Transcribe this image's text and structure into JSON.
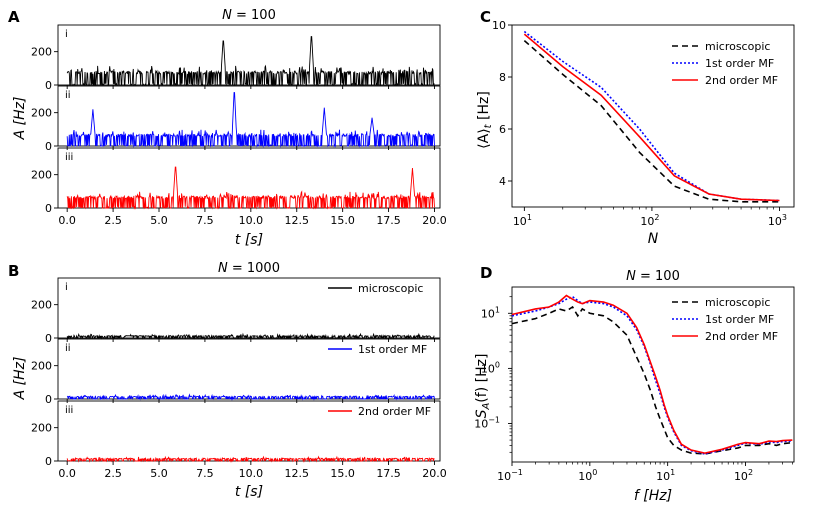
{
  "figure": {
    "panel_a_letter": "A",
    "panel_b_letter": "B",
    "panel_c_letter": "C",
    "panel_d_letter": "D"
  },
  "legend": {
    "microscopic": "microscopic",
    "first_order": "1st order MF",
    "second_order": "2nd order MF"
  },
  "colors": {
    "microscopic": "#000000",
    "first_order": "#0000ff",
    "second_order": "#ff0000"
  },
  "chart_data": [
    {
      "id": "A",
      "type": "line",
      "title": "N = 100",
      "title_prefix": "N",
      "title_suffix": " = 100",
      "xlabel": "t [s]",
      "ylabel": "A [Hz]",
      "xlim": [
        -0.5,
        20.3
      ],
      "ylim": [
        0,
        360
      ],
      "xticks": [
        0.0,
        2.5,
        5.0,
        7.5,
        10.0,
        12.5,
        15.0,
        17.5,
        20.0
      ],
      "xtick_labels": [
        "0.0",
        "2.5",
        "5.0",
        "7.5",
        "10.0",
        "12.5",
        "15.0",
        "17.5",
        "20.0"
      ],
      "yticks": [
        0,
        200
      ],
      "ytick_labels": [
        "0",
        "200"
      ],
      "subplots": [
        {
          "label": "i",
          "series": "microscopic",
          "baseline": 75,
          "jitter": 18,
          "peaks": [
            [
              8.5,
              290
            ],
            [
              13.3,
              320
            ]
          ]
        },
        {
          "label": "ii",
          "series": "1st order MF",
          "baseline": 65,
          "jitter": 15,
          "peaks": [
            [
              1.4,
              220
            ],
            [
              9.1,
              355
            ],
            [
              14.0,
              230
            ],
            [
              16.6,
              170
            ]
          ]
        },
        {
          "label": "iii",
          "series": "2nd order MF",
          "baseline": 65,
          "jitter": 15,
          "peaks": [
            [
              5.9,
              270
            ],
            [
              18.8,
              240
            ]
          ]
        }
      ]
    },
    {
      "id": "B",
      "type": "line",
      "title": "N = 1000",
      "title_prefix": "N",
      "title_suffix": " = 1000",
      "xlabel": "t [s]",
      "ylabel": "A [Hz]",
      "xlim": [
        -0.5,
        20.3
      ],
      "ylim": [
        0,
        360
      ],
      "xticks": [
        0.0,
        2.5,
        5.0,
        7.5,
        10.0,
        12.5,
        15.0,
        17.5,
        20.0
      ],
      "xtick_labels": [
        "0.0",
        "2.5",
        "5.0",
        "7.5",
        "10.0",
        "12.5",
        "15.0",
        "17.5",
        "20.0"
      ],
      "yticks": [
        0,
        200
      ],
      "ytick_labels": [
        "0",
        "200"
      ],
      "subplots": [
        {
          "label": "i",
          "series": "microscopic",
          "baseline": 12,
          "jitter": 5,
          "peaks": []
        },
        {
          "label": "ii",
          "series": "1st order MF",
          "baseline": 14,
          "jitter": 5,
          "peaks": []
        },
        {
          "label": "iii",
          "series": "2nd order MF",
          "baseline": 14,
          "jitter": 5,
          "peaks": []
        }
      ]
    },
    {
      "id": "C",
      "type": "line",
      "xscale": "log",
      "xlabel": "N",
      "ylabel": "⟨A⟩_t [Hz]",
      "ylabel_main": "⟨A⟩",
      "ylabel_sub": "t",
      "ylabel_unit": " [Hz]",
      "xlim": [
        8,
        1300
      ],
      "ylim": [
        3,
        10
      ],
      "xticks": [
        10,
        100,
        1000
      ],
      "xtick_base": "10",
      "xtick_exps": [
        "1",
        "2",
        "3"
      ],
      "yticks": [
        4,
        6,
        8,
        10
      ],
      "ytick_labels": [
        "4",
        "6",
        "8",
        "10"
      ],
      "series": [
        {
          "name": "microscopic",
          "style": "dashed",
          "x": [
            10,
            20,
            40,
            80,
            150,
            280,
            500,
            1000
          ],
          "y": [
            9.4,
            8.1,
            6.9,
            5.1,
            3.8,
            3.3,
            3.2,
            3.2
          ]
        },
        {
          "name": "1st order MF",
          "style": "dotted",
          "x": [
            10,
            20,
            40,
            80,
            150,
            280,
            500,
            1000
          ],
          "y": [
            9.75,
            8.6,
            7.6,
            6.0,
            4.3,
            3.5,
            3.3,
            3.25
          ]
        },
        {
          "name": "2nd order MF",
          "style": "solid",
          "x": [
            10,
            20,
            40,
            80,
            150,
            280,
            500,
            1000
          ],
          "y": [
            9.65,
            8.4,
            7.3,
            5.7,
            4.2,
            3.5,
            3.3,
            3.25
          ]
        }
      ]
    },
    {
      "id": "D",
      "type": "line",
      "xscale": "log",
      "yscale": "log",
      "title": "N = 100",
      "title_prefix": "N",
      "title_suffix": " = 100",
      "xlabel": "f [Hz]",
      "ylabel": "S_A(f) [Hz]",
      "ylabel_main": "S",
      "ylabel_sub": "A",
      "ylabel_unit": "(f) [Hz]",
      "xlim": [
        0.1,
        420
      ],
      "ylim": [
        0.02,
        30
      ],
      "xticks": [
        0.1,
        1,
        10,
        100
      ],
      "xtick_base": "10",
      "xtick_exps": [
        "−1",
        "0",
        "1",
        "2"
      ],
      "yticks": [
        0.1,
        1,
        10
      ],
      "ytick_base": "10",
      "ytick_exps": [
        "−1",
        "0",
        "1"
      ],
      "series": [
        {
          "name": "microscopic",
          "style": "dashed",
          "x": [
            0.1,
            0.2,
            0.3,
            0.4,
            0.5,
            0.6,
            0.7,
            0.8,
            1,
            1.5,
            2,
            3,
            4,
            5,
            6,
            7,
            8,
            9,
            10,
            12,
            15,
            20,
            30,
            50,
            80,
            100,
            150,
            200,
            250,
            300,
            400
          ],
          "y": [
            6.5,
            8,
            10,
            12,
            11,
            13,
            9,
            12,
            10,
            9,
            7,
            4,
            1.6,
            0.8,
            0.4,
            0.2,
            0.12,
            0.08,
            0.055,
            0.04,
            0.033,
            0.029,
            0.028,
            0.032,
            0.036,
            0.04,
            0.04,
            0.043,
            0.04,
            0.043,
            0.045
          ]
        },
        {
          "name": "1st order MF",
          "style": "dotted",
          "x": [
            0.1,
            0.2,
            0.3,
            0.4,
            0.5,
            0.6,
            0.7,
            0.8,
            1,
            1.5,
            2,
            3,
            4,
            5,
            6,
            7,
            8,
            9,
            10,
            12,
            15,
            20,
            30,
            50,
            80,
            100,
            150,
            200,
            250,
            300,
            400
          ],
          "y": [
            9,
            11,
            13,
            15,
            18,
            20,
            17,
            15,
            16,
            15,
            13,
            9,
            5,
            2.5,
            1.2,
            0.6,
            0.35,
            0.2,
            0.13,
            0.07,
            0.04,
            0.032,
            0.028,
            0.033,
            0.04,
            0.044,
            0.042,
            0.046,
            0.045,
            0.047,
            0.048
          ]
        },
        {
          "name": "2nd order MF",
          "style": "solid",
          "x": [
            0.1,
            0.2,
            0.3,
            0.4,
            0.5,
            0.6,
            0.7,
            0.8,
            1,
            1.5,
            2,
            3,
            4,
            5,
            6,
            7,
            8,
            9,
            10,
            12,
            15,
            20,
            30,
            50,
            80,
            100,
            150,
            200,
            250,
            300,
            400
          ],
          "y": [
            9.5,
            12,
            13,
            16,
            21,
            18,
            16,
            15,
            17,
            16,
            14,
            10,
            5.5,
            2.7,
            1.3,
            0.7,
            0.4,
            0.22,
            0.14,
            0.075,
            0.042,
            0.033,
            0.029,
            0.034,
            0.042,
            0.045,
            0.043,
            0.048,
            0.047,
            0.049,
            0.05
          ]
        }
      ]
    }
  ]
}
